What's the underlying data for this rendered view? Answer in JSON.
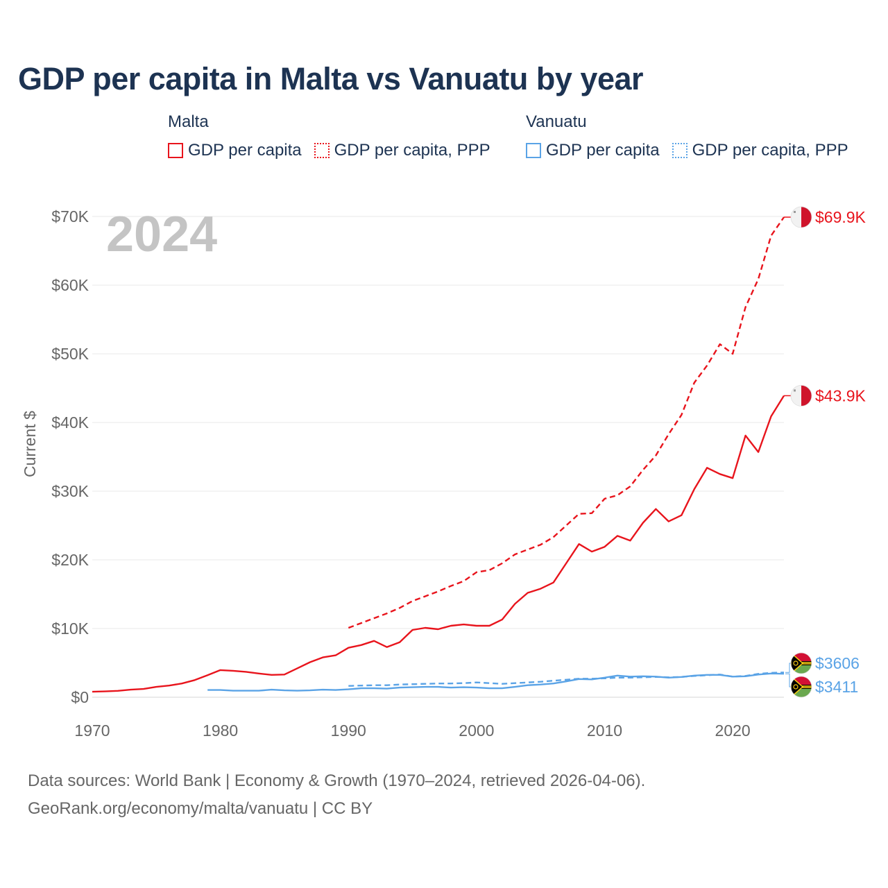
{
  "title": "GDP per capita in Malta vs Vanuatu by year",
  "legend": {
    "groups": [
      {
        "country": "Malta",
        "color": "#e8141c",
        "items": [
          {
            "label": "GDP per capita",
            "style": "solid"
          },
          {
            "label": "GDP per capita, PPP",
            "style": "dotted"
          }
        ]
      },
      {
        "country": "Vanuatu",
        "color": "#5aa3e6",
        "items": [
          {
            "label": "GDP per capita",
            "style": "solid"
          },
          {
            "label": "GDP per capita, PPP",
            "style": "dotted"
          }
        ]
      }
    ]
  },
  "year_label": "2024",
  "source": {
    "line1": "Data sources: World Bank | Economy & Growth (1970–2024, retrieved 2026-04-06).",
    "line2": "GeoRank.org/economy/malta/vanuatu | CC BY"
  },
  "chart_data": {
    "type": "line",
    "title": "GDP per capita in Malta vs Vanuatu by year",
    "xlabel": "",
    "ylabel": "Current $",
    "xlim": [
      1970,
      2024
    ],
    "ylim": [
      0,
      70000
    ],
    "grid": true,
    "x_ticks": [
      1970,
      1980,
      1990,
      2000,
      2010,
      2020
    ],
    "x_tick_labels": [
      "1970",
      "1980",
      "1990",
      "2000",
      "2010",
      "2020"
    ],
    "y_ticks": [
      0,
      10000,
      20000,
      30000,
      40000,
      50000,
      60000,
      70000
    ],
    "y_tick_labels": [
      "$0",
      "$10K",
      "$20K",
      "$30K",
      "$40K",
      "$50K",
      "$60K",
      "$70K"
    ],
    "series": [
      {
        "name": "Malta GDP per capita",
        "country": "Malta",
        "color": "#e8141c",
        "dash": "solid",
        "end_label": "$43.9K",
        "flag": "malta",
        "points": [
          [
            1970,
            800
          ],
          [
            1971,
            850
          ],
          [
            1972,
            930
          ],
          [
            1973,
            1100
          ],
          [
            1974,
            1200
          ],
          [
            1975,
            1500
          ],
          [
            1976,
            1700
          ],
          [
            1977,
            2000
          ],
          [
            1978,
            2500
          ],
          [
            1979,
            3200
          ],
          [
            1980,
            3950
          ],
          [
            1981,
            3850
          ],
          [
            1982,
            3700
          ],
          [
            1983,
            3450
          ],
          [
            1984,
            3250
          ],
          [
            1985,
            3300
          ],
          [
            1986,
            4200
          ],
          [
            1987,
            5100
          ],
          [
            1988,
            5800
          ],
          [
            1989,
            6100
          ],
          [
            1990,
            7200
          ],
          [
            1991,
            7600
          ],
          [
            1992,
            8200
          ],
          [
            1993,
            7300
          ],
          [
            1994,
            8000
          ],
          [
            1995,
            9800
          ],
          [
            1996,
            10100
          ],
          [
            1997,
            9900
          ],
          [
            1998,
            10400
          ],
          [
            1999,
            10600
          ],
          [
            2000,
            10400
          ],
          [
            2001,
            10400
          ],
          [
            2002,
            11300
          ],
          [
            2003,
            13600
          ],
          [
            2004,
            15200
          ],
          [
            2005,
            15800
          ],
          [
            2006,
            16700
          ],
          [
            2007,
            19500
          ],
          [
            2008,
            22300
          ],
          [
            2009,
            21200
          ],
          [
            2010,
            21900
          ],
          [
            2011,
            23500
          ],
          [
            2012,
            22800
          ],
          [
            2013,
            25400
          ],
          [
            2014,
            27400
          ],
          [
            2015,
            25600
          ],
          [
            2016,
            26500
          ],
          [
            2017,
            30300
          ],
          [
            2018,
            33400
          ],
          [
            2019,
            32500
          ],
          [
            2020,
            31900
          ],
          [
            2021,
            38100
          ],
          [
            2022,
            35700
          ],
          [
            2023,
            40900
          ],
          [
            2024,
            43900
          ]
        ]
      },
      {
        "name": "Malta GDP per capita, PPP",
        "country": "Malta",
        "color": "#e8141c",
        "dash": "dashed",
        "end_label": "$69.9K",
        "flag": "malta",
        "points": [
          [
            1990,
            10100
          ],
          [
            1991,
            10800
          ],
          [
            1992,
            11500
          ],
          [
            1993,
            12200
          ],
          [
            1994,
            13000
          ],
          [
            1995,
            14000
          ],
          [
            1996,
            14700
          ],
          [
            1997,
            15400
          ],
          [
            1998,
            16200
          ],
          [
            1999,
            16900
          ],
          [
            2000,
            18200
          ],
          [
            2001,
            18500
          ],
          [
            2002,
            19500
          ],
          [
            2003,
            20800
          ],
          [
            2004,
            21500
          ],
          [
            2005,
            22200
          ],
          [
            2006,
            23300
          ],
          [
            2007,
            25000
          ],
          [
            2008,
            26700
          ],
          [
            2009,
            26800
          ],
          [
            2010,
            28900
          ],
          [
            2011,
            29400
          ],
          [
            2012,
            30700
          ],
          [
            2013,
            33100
          ],
          [
            2014,
            35200
          ],
          [
            2015,
            38300
          ],
          [
            2016,
            41100
          ],
          [
            2017,
            45800
          ],
          [
            2018,
            48300
          ],
          [
            2019,
            51400
          ],
          [
            2020,
            50000
          ],
          [
            2021,
            56800
          ],
          [
            2022,
            60900
          ],
          [
            2023,
            67200
          ],
          [
            2024,
            69900
          ]
        ]
      },
      {
        "name": "Vanuatu GDP per capita",
        "country": "Vanuatu",
        "color": "#5aa3e6",
        "dash": "solid",
        "end_label": "$3411",
        "flag": "vanuatu",
        "points": [
          [
            1979,
            1050
          ],
          [
            1980,
            1050
          ],
          [
            1981,
            950
          ],
          [
            1982,
            950
          ],
          [
            1983,
            950
          ],
          [
            1984,
            1100
          ],
          [
            1985,
            1000
          ],
          [
            1986,
            950
          ],
          [
            1987,
            1000
          ],
          [
            1988,
            1100
          ],
          [
            1989,
            1050
          ],
          [
            1990,
            1150
          ],
          [
            1991,
            1300
          ],
          [
            1992,
            1300
          ],
          [
            1993,
            1250
          ],
          [
            1994,
            1400
          ],
          [
            1995,
            1450
          ],
          [
            1996,
            1500
          ],
          [
            1997,
            1500
          ],
          [
            1998,
            1400
          ],
          [
            1999,
            1450
          ],
          [
            2000,
            1400
          ],
          [
            2001,
            1300
          ],
          [
            2002,
            1300
          ],
          [
            2003,
            1500
          ],
          [
            2004,
            1750
          ],
          [
            2005,
            1850
          ],
          [
            2006,
            2000
          ],
          [
            2007,
            2300
          ],
          [
            2008,
            2650
          ],
          [
            2009,
            2600
          ],
          [
            2010,
            2850
          ],
          [
            2011,
            3150
          ],
          [
            2012,
            3000
          ],
          [
            2013,
            3050
          ],
          [
            2014,
            3000
          ],
          [
            2015,
            2850
          ],
          [
            2016,
            2950
          ],
          [
            2017,
            3150
          ],
          [
            2018,
            3250
          ],
          [
            2019,
            3250
          ],
          [
            2020,
            3000
          ],
          [
            2021,
            3050
          ],
          [
            2022,
            3300
          ],
          [
            2023,
            3450
          ],
          [
            2024,
            3411
          ]
        ]
      },
      {
        "name": "Vanuatu GDP per capita, PPP",
        "country": "Vanuatu",
        "color": "#5aa3e6",
        "dash": "dashed",
        "end_label": "$3606",
        "flag": "vanuatu",
        "points": [
          [
            1990,
            1650
          ],
          [
            1991,
            1700
          ],
          [
            1992,
            1750
          ],
          [
            1993,
            1750
          ],
          [
            1994,
            1850
          ],
          [
            1995,
            1900
          ],
          [
            1996,
            1950
          ],
          [
            1997,
            2000
          ],
          [
            1998,
            2000
          ],
          [
            1999,
            2050
          ],
          [
            2000,
            2150
          ],
          [
            2001,
            2050
          ],
          [
            2002,
            1950
          ],
          [
            2003,
            2050
          ],
          [
            2004,
            2150
          ],
          [
            2005,
            2250
          ],
          [
            2006,
            2400
          ],
          [
            2007,
            2550
          ],
          [
            2008,
            2700
          ],
          [
            2009,
            2700
          ],
          [
            2010,
            2750
          ],
          [
            2011,
            2850
          ],
          [
            2012,
            2850
          ],
          [
            2013,
            2900
          ],
          [
            2014,
            2950
          ],
          [
            2015,
            2900
          ],
          [
            2016,
            2950
          ],
          [
            2017,
            3100
          ],
          [
            2018,
            3200
          ],
          [
            2019,
            3300
          ],
          [
            2020,
            3000
          ],
          [
            2021,
            3100
          ],
          [
            2022,
            3400
          ],
          [
            2023,
            3550
          ],
          [
            2024,
            3606
          ]
        ]
      }
    ]
  }
}
